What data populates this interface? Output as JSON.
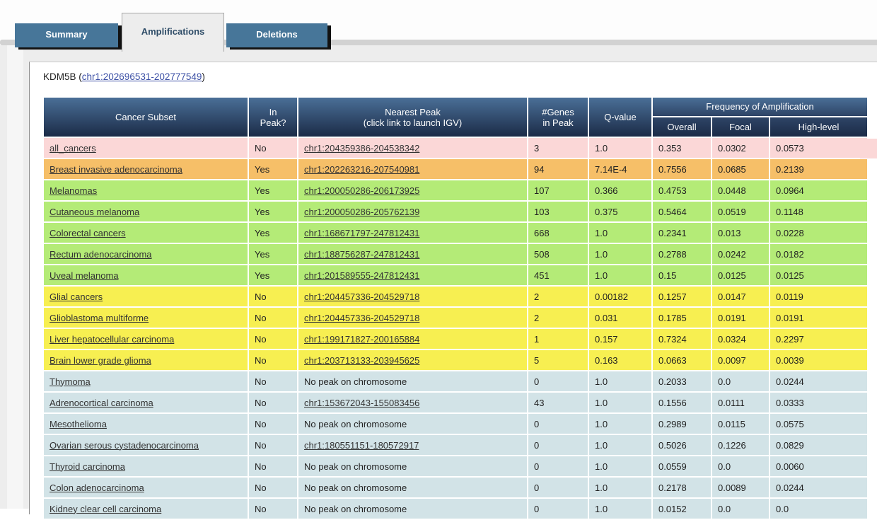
{
  "tabs": [
    {
      "label": "Summary",
      "active": false
    },
    {
      "label": "Amplifications",
      "active": true
    },
    {
      "label": "Deletions",
      "active": false
    }
  ],
  "gene": {
    "name_prefix": "KDM5B (",
    "locus_link": "chr1:202696531-202777549",
    "name_suffix": ")"
  },
  "table": {
    "headers": {
      "cancer_subset": "Cancer Subset",
      "in_peak": "In\nPeak?",
      "nearest_peak": "Nearest Peak\n(click link to launch IGV)",
      "genes": "#Genes\nin Peak",
      "qvalue": "Q-value",
      "freq_group": "Frequency of Amplification",
      "overall": "Overall",
      "focal": "Focal",
      "high_level": "High-level"
    },
    "rows": [
      {
        "subset": "all_cancers",
        "in_peak": "No",
        "peak": "chr1:204359386-204538342",
        "peak_is_link": true,
        "genes": "3",
        "qvalue": "1.0",
        "overall": "0.353",
        "focal": "0.0302",
        "high": "0.0573",
        "color": "pink"
      },
      {
        "subset": "Breast invasive adenocarcinoma",
        "in_peak": "Yes",
        "peak": "chr1:202263216-207540981",
        "peak_is_link": true,
        "genes": "94",
        "qvalue": "7.14E-4",
        "overall": "0.7556",
        "focal": "0.0685",
        "high": "0.2139",
        "color": "orange"
      },
      {
        "subset": "Melanomas",
        "in_peak": "Yes",
        "peak": "chr1:200050286-206173925",
        "peak_is_link": true,
        "genes": "107",
        "qvalue": "0.366",
        "overall": "0.4753",
        "focal": "0.0448",
        "high": "0.0964",
        "color": "green"
      },
      {
        "subset": "Cutaneous melanoma",
        "in_peak": "Yes",
        "peak": "chr1:200050286-205762139",
        "peak_is_link": true,
        "genes": "103",
        "qvalue": "0.375",
        "overall": "0.5464",
        "focal": "0.0519",
        "high": "0.1148",
        "color": "green"
      },
      {
        "subset": "Colorectal cancers",
        "in_peak": "Yes",
        "peak": "chr1:168671797-247812431",
        "peak_is_link": true,
        "genes": "668",
        "qvalue": "1.0",
        "overall": "0.2341",
        "focal": "0.013",
        "high": "0.0228",
        "color": "green"
      },
      {
        "subset": "Rectum adenocarcinoma",
        "in_peak": "Yes",
        "peak": "chr1:188756287-247812431",
        "peak_is_link": true,
        "genes": "508",
        "qvalue": "1.0",
        "overall": "0.2788",
        "focal": "0.0242",
        "high": "0.0182",
        "color": "green"
      },
      {
        "subset": "Uveal melanoma",
        "in_peak": "Yes",
        "peak": "chr1:201589555-247812431",
        "peak_is_link": true,
        "genes": "451",
        "qvalue": "1.0",
        "overall": "0.15",
        "focal": "0.0125",
        "high": "0.0125",
        "color": "green"
      },
      {
        "subset": "Glial cancers",
        "in_peak": "No",
        "peak": "chr1:204457336-204529718",
        "peak_is_link": true,
        "genes": "2",
        "qvalue": "0.00182",
        "overall": "0.1257",
        "focal": "0.0147",
        "high": "0.0119",
        "color": "yellow"
      },
      {
        "subset": "Glioblastoma multiforme",
        "in_peak": "No",
        "peak": "chr1:204457336-204529718",
        "peak_is_link": true,
        "genes": "2",
        "qvalue": "0.031",
        "overall": "0.1785",
        "focal": "0.0191",
        "high": "0.0191",
        "color": "yellow"
      },
      {
        "subset": "Liver hepatocellular carcinoma",
        "in_peak": "No",
        "peak": "chr1:199171827-200165884",
        "peak_is_link": true,
        "genes": "1",
        "qvalue": "0.157",
        "overall": "0.7324",
        "focal": "0.0324",
        "high": "0.2297",
        "color": "yellow"
      },
      {
        "subset": "Brain lower grade glioma",
        "in_peak": "No",
        "peak": "chr1:203713133-203945625",
        "peak_is_link": true,
        "genes": "5",
        "qvalue": "0.163",
        "overall": "0.0663",
        "focal": "0.0097",
        "high": "0.0039",
        "color": "yellow"
      },
      {
        "subset": "Thymoma",
        "in_peak": "No",
        "peak": "No peak on chromosome",
        "peak_is_link": false,
        "genes": "0",
        "qvalue": "1.0",
        "overall": "0.2033",
        "focal": "0.0",
        "high": "0.0244",
        "color": "blue"
      },
      {
        "subset": "Adrenocortical carcinoma",
        "in_peak": "No",
        "peak": "chr1:153672043-155083456",
        "peak_is_link": true,
        "genes": "43",
        "qvalue": "1.0",
        "overall": "0.1556",
        "focal": "0.0111",
        "high": "0.0333",
        "color": "blue"
      },
      {
        "subset": "Mesothelioma",
        "in_peak": "No",
        "peak": "No peak on chromosome",
        "peak_is_link": false,
        "genes": "0",
        "qvalue": "1.0",
        "overall": "0.2989",
        "focal": "0.0115",
        "high": "0.0575",
        "color": "blue"
      },
      {
        "subset": "Ovarian serous cystadenocarcinoma",
        "in_peak": "No",
        "peak": "chr1:180551151-180572917",
        "peak_is_link": true,
        "genes": "0",
        "qvalue": "1.0",
        "overall": "0.5026",
        "focal": "0.1226",
        "high": "0.0829",
        "color": "blue"
      },
      {
        "subset": "Thyroid carcinoma",
        "in_peak": "No",
        "peak": "No peak on chromosome",
        "peak_is_link": false,
        "genes": "0",
        "qvalue": "1.0",
        "overall": "0.0559",
        "focal": "0.0",
        "high": "0.0060",
        "color": "blue"
      },
      {
        "subset": "Colon adenocarcinoma",
        "in_peak": "No",
        "peak": "No peak on chromosome",
        "peak_is_link": false,
        "genes": "0",
        "qvalue": "1.0",
        "overall": "0.2178",
        "focal": "0.0089",
        "high": "0.0244",
        "color": "blue"
      },
      {
        "subset": "Kidney clear cell carcinoma",
        "in_peak": "No",
        "peak": "No peak on chromosome",
        "peak_is_link": false,
        "genes": "0",
        "qvalue": "1.0",
        "overall": "0.0152",
        "focal": "0.0",
        "high": "0.0",
        "color": "blue"
      }
    ]
  },
  "colors": {
    "tab_blue": "#477699",
    "header_gradient_top": "#4a6f97",
    "header_gradient_bottom": "#1b2b47",
    "rows": {
      "pink": "#fbd7d7",
      "orange": "#f6bf68",
      "green": "#b4eb77",
      "yellow": "#f7ef51",
      "blue": "#d2e3e7"
    }
  }
}
